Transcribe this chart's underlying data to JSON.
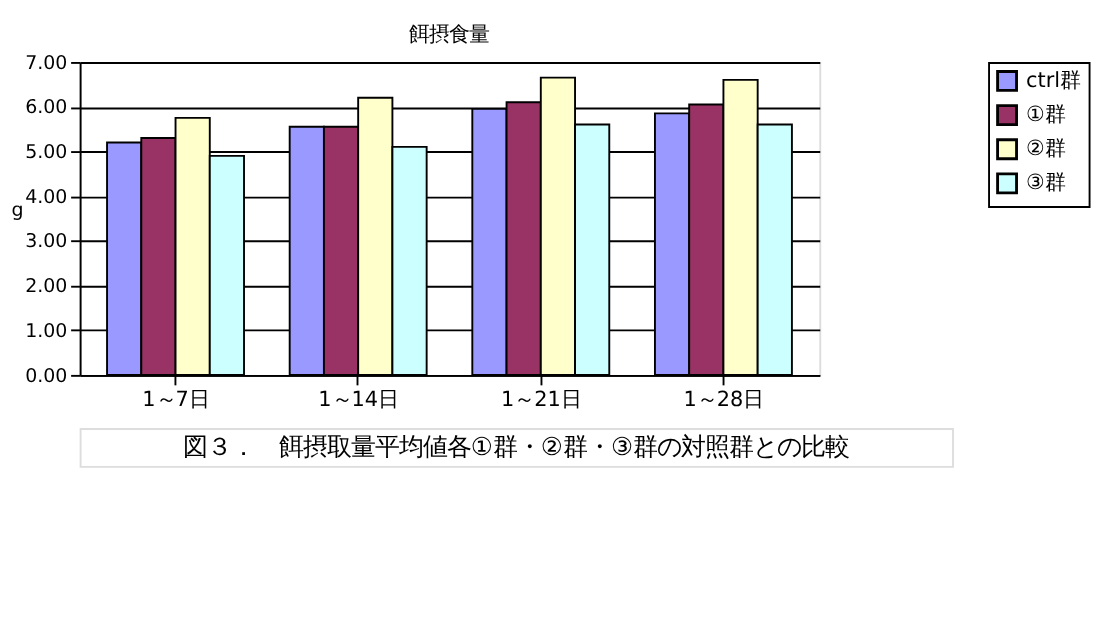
{
  "chart_data": {
    "type": "bar",
    "title": "餌摂食量",
    "ylabel": "g",
    "categories": [
      "1～7日",
      "1～14日",
      "1～21日",
      "1～28日"
    ],
    "series": [
      {
        "name": "ctrl群",
        "color": "#9999ff",
        "values": [
          5.2,
          5.55,
          5.95,
          5.85
        ]
      },
      {
        "name": "①群",
        "color": "#993366",
        "values": [
          5.3,
          5.55,
          6.1,
          6.05
        ]
      },
      {
        "name": "②群",
        "color": "#ffffcc",
        "values": [
          5.75,
          6.2,
          6.65,
          6.6
        ]
      },
      {
        "name": "③群",
        "color": "#ccffff",
        "values": [
          4.9,
          5.1,
          5.6,
          5.6
        ]
      }
    ],
    "ylim": [
      0,
      7
    ],
    "yticks": [
      {
        "value": 0,
        "label": "0.00"
      },
      {
        "value": 1,
        "label": "1.00"
      },
      {
        "value": 2,
        "label": "2.00"
      },
      {
        "value": 3,
        "label": "3.00"
      },
      {
        "value": 4,
        "label": "4.00"
      },
      {
        "value": 5,
        "label": "5.00"
      },
      {
        "value": 6,
        "label": "6.00"
      },
      {
        "value": 7,
        "label": "7.00"
      }
    ],
    "grid": "y",
    "legend": "right",
    "annotations": [
      "図３．　餌摂取量平均値各①群・②群・③群の対照群との比較"
    ]
  }
}
